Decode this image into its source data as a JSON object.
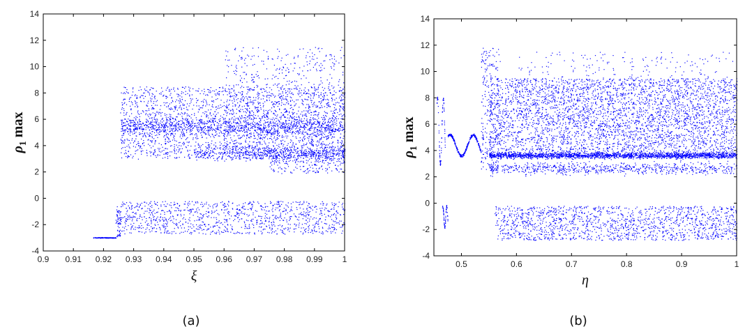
{
  "chart_data": [
    {
      "type": "scatter",
      "panel_label": "(a)",
      "xlabel": "ξ",
      "ylabel": {
        "symbol": "ρ",
        "subscript": "1",
        "suffix": " max"
      },
      "xlim": [
        0.9,
        1.0
      ],
      "ylim": [
        -4,
        14
      ],
      "xticks": [
        0.9,
        0.91,
        0.92,
        0.93,
        0.94,
        0.95,
        0.96,
        0.97,
        0.98,
        0.99,
        1.0
      ],
      "xtick_labels": [
        "0.9",
        "0.91",
        "0.92",
        "0.93",
        "0.94",
        "0.95",
        "0.96",
        "0.97",
        "0.98",
        "0.99",
        "1"
      ],
      "yticks": [
        -4,
        -2,
        0,
        2,
        4,
        6,
        8,
        10,
        12,
        14
      ],
      "ytick_labels": [
        "-4",
        "-2",
        "0",
        "2",
        "4",
        "6",
        "8",
        "10",
        "12",
        "14"
      ],
      "grid": false,
      "marker_color": "#0000ff",
      "regions": [
        {
          "x": [
            0.9165,
            0.924
          ],
          "y": [
            -3.0,
            -2.95
          ],
          "count": 140
        },
        {
          "x": [
            0.924,
            0.9255
          ],
          "y": [
            -2.9,
            -0.6
          ],
          "count": 60
        },
        {
          "x": [
            0.9255,
            1.0
          ],
          "y": [
            4.5,
            6.4
          ],
          "count": 900,
          "spread": "tight"
        },
        {
          "x": [
            0.9255,
            1.0
          ],
          "y": [
            3.0,
            8.5
          ],
          "count": 2200
        },
        {
          "x": [
            0.96,
            1.0
          ],
          "y": [
            2.8,
            11.5
          ],
          "count": 700
        },
        {
          "x": [
            0.95,
            1.0
          ],
          "y": [
            2.8,
            4.2
          ],
          "count": 500,
          "spread": "band"
        },
        {
          "x": [
            0.975,
            1.0
          ],
          "y": [
            1.9,
            3.3
          ],
          "count": 200
        },
        {
          "x": [
            0.9255,
            1.0
          ],
          "y": [
            -2.7,
            -0.2
          ],
          "count": 1100
        }
      ]
    },
    {
      "type": "scatter",
      "panel_label": "(b)",
      "xlabel": "η",
      "ylabel": {
        "symbol": "ρ",
        "subscript": "1",
        "suffix": " max"
      },
      "xlim": [
        0.45,
        1.0
      ],
      "ylim": [
        -4,
        14
      ],
      "xticks": [
        0.5,
        0.6,
        0.7,
        0.8,
        0.9,
        1.0
      ],
      "xtick_labels": [
        "0.5",
        "0.6",
        "0.7",
        "0.8",
        "0.9",
        "1"
      ],
      "yticks": [
        -4,
        -2,
        0,
        2,
        4,
        6,
        8,
        10,
        12,
        14
      ],
      "ytick_labels": [
        "-4",
        "-2",
        "0",
        "2",
        "4",
        "6",
        "8",
        "10",
        "12",
        "14"
      ],
      "grid": false,
      "marker_color": "#0000ff",
      "regions": [
        {
          "x": [
            0.455,
            0.47
          ],
          "y": [
            3.0,
            8.0
          ],
          "count": 80,
          "spread": "curve"
        },
        {
          "x": [
            0.465,
            0.475
          ],
          "y": [
            -1.8,
            -0.2
          ],
          "count": 60,
          "spread": "curve"
        },
        {
          "x": [
            0.475,
            0.535
          ],
          "y": [
            3.6,
            5.2
          ],
          "count": 300,
          "spread": "curve"
        },
        {
          "x": [
            0.535,
            0.57
          ],
          "y": [
            2.5,
            11.8
          ],
          "count": 250
        },
        {
          "x": [
            0.55,
            1.0
          ],
          "y": [
            3.3,
            4.0
          ],
          "count": 1800,
          "spread": "band"
        },
        {
          "x": [
            0.55,
            1.0
          ],
          "y": [
            3.5,
            9.5
          ],
          "count": 3500
        },
        {
          "x": [
            0.6,
            1.0
          ],
          "y": [
            4.0,
            11.5
          ],
          "count": 600
        },
        {
          "x": [
            0.55,
            1.0
          ],
          "y": [
            2.0,
            3.3
          ],
          "count": 700,
          "spread": "band"
        },
        {
          "x": [
            0.56,
            1.0
          ],
          "y": [
            -2.8,
            -0.2
          ],
          "count": 1500
        }
      ]
    }
  ]
}
